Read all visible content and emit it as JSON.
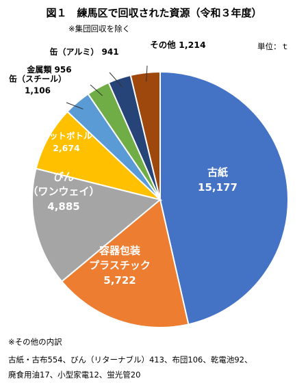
{
  "title": "図１　練馬区で回収された資源（令和３年度）",
  "subtitle": "※集団回収を除く",
  "unit_label": "単位：ｔ",
  "colors": {
    "paper": "#4472c4",
    "container": "#ed7d31",
    "bottle": "#a5a5a5",
    "pet": "#ffc000",
    "steel": "#5b9bd5",
    "metal": "#70ad47",
    "aluminum": "#264478",
    "other": "#9e480e"
  },
  "chart_data": {
    "type": "pie",
    "unit": "t",
    "slices": [
      {
        "label": "古紙",
        "value": 15177,
        "value_label": "15,177"
      },
      {
        "label": "容器包装 プラスチック",
        "value": 5722,
        "value_label": "5,722"
      },
      {
        "label": "びん （ワンウェイ）",
        "value": 4885,
        "value_label": "4,885"
      },
      {
        "label": "ペットボトル",
        "value": 2674,
        "value_label": "2,674"
      },
      {
        "label": "缶（スチール）",
        "value": 1106,
        "value_label": "1,106"
      },
      {
        "label": "金属類",
        "value": 956,
        "value_label": "956"
      },
      {
        "label": "缶（アルミ）",
        "value": 941,
        "value_label": "941"
      },
      {
        "label": "その他",
        "value": 1214,
        "value_label": "1,214"
      }
    ]
  },
  "notes": {
    "heading": "※その他の内訳",
    "line1": "古紙・古布554、びん（リターナブル）413、布団106、乾電池92、",
    "line2": "廃食用油17、小型家電12、蛍光管20"
  }
}
